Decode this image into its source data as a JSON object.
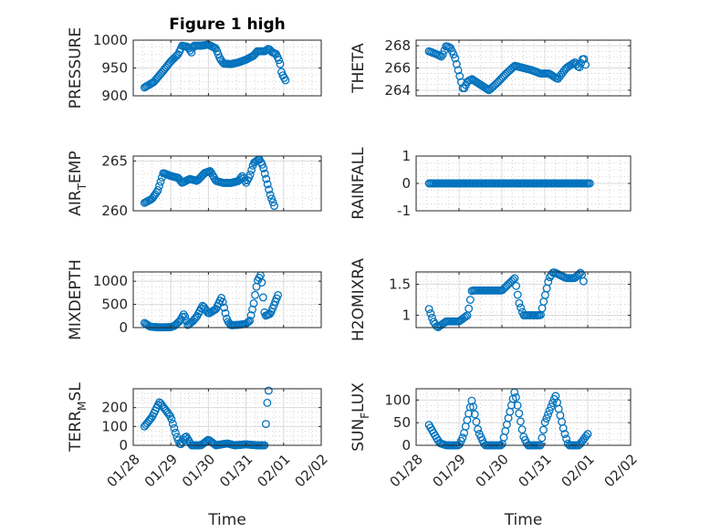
{
  "figure_title": "Figure 1 high",
  "chart_data": [
    {
      "type": "scatter",
      "name": "pressure",
      "ylabel": "PRESSURE",
      "ylabel_sub": null,
      "ylim": [
        900,
        1000
      ],
      "yticks": [
        900,
        950,
        1000
      ],
      "ytick_labels": [
        "900",
        "950",
        "1000"
      ],
      "xlim": [
        0,
        5
      ],
      "xtick_labels": [
        "01/28",
        "01/29",
        "01/30",
        "01/31",
        "02/01",
        "02/02"
      ],
      "show_xticklabels": false,
      "xlabel": "",
      "title": "Figure 1 high",
      "anchors": [
        [
          0.3,
          915
        ],
        [
          0.55,
          925
        ],
        [
          0.8,
          945
        ],
        [
          1.0,
          962
        ],
        [
          1.2,
          975
        ],
        [
          1.3,
          990
        ],
        [
          1.45,
          988
        ],
        [
          1.55,
          978
        ],
        [
          1.6,
          990
        ],
        [
          1.8,
          990
        ],
        [
          2.0,
          992
        ],
        [
          2.2,
          985
        ],
        [
          2.3,
          968
        ],
        [
          2.4,
          958
        ],
        [
          2.6,
          957
        ],
        [
          2.8,
          960
        ],
        [
          3.0,
          965
        ],
        [
          3.2,
          972
        ],
        [
          3.3,
          980
        ],
        [
          3.5,
          980
        ],
        [
          3.6,
          985
        ],
        [
          3.7,
          978
        ],
        [
          3.8,
          975
        ],
        [
          3.9,
          960
        ],
        [
          3.95,
          940
        ],
        [
          4.05,
          928
        ]
      ]
    },
    {
      "type": "scatter",
      "name": "theta",
      "ylabel": "THETA",
      "ylabel_sub": null,
      "ylim": [
        263.5,
        268.5
      ],
      "yticks": [
        264,
        266,
        268
      ],
      "ytick_labels": [
        "264",
        "266",
        "268"
      ],
      "xlim": [
        0,
        5
      ],
      "xtick_labels": [
        "01/28",
        "01/29",
        "01/30",
        "01/31",
        "02/01",
        "02/02"
      ],
      "show_xticklabels": false,
      "xlabel": "",
      "title": "",
      "anchors": [
        [
          0.3,
          267.5
        ],
        [
          0.5,
          267.2
        ],
        [
          0.6,
          267.0
        ],
        [
          0.7,
          268.0
        ],
        [
          0.8,
          267.8
        ],
        [
          0.9,
          267.0
        ],
        [
          1.0,
          265.5
        ],
        [
          1.1,
          264.0
        ],
        [
          1.2,
          264.8
        ],
        [
          1.3,
          265.0
        ],
        [
          1.5,
          264.5
        ],
        [
          1.7,
          264.0
        ],
        [
          1.9,
          264.7
        ],
        [
          2.1,
          265.5
        ],
        [
          2.3,
          266.2
        ],
        [
          2.5,
          266.0
        ],
        [
          2.7,
          265.8
        ],
        [
          2.9,
          265.5
        ],
        [
          3.1,
          265.5
        ],
        [
          3.3,
          265.0
        ],
        [
          3.5,
          266.0
        ],
        [
          3.7,
          266.5
        ],
        [
          3.8,
          266.0
        ],
        [
          3.9,
          267.0
        ],
        [
          3.95,
          266.3
        ]
      ]
    },
    {
      "type": "scatter",
      "name": "air_temp",
      "ylabel": "AIR",
      "ylabel_sub": "T",
      "ylabel_suffix": "EMP",
      "ylim": [
        260,
        265.5
      ],
      "yticks": [
        260,
        265
      ],
      "ytick_labels": [
        "260",
        "265"
      ],
      "xlim": [
        0,
        5
      ],
      "xtick_labels": [
        "01/28",
        "01/29",
        "01/30",
        "01/31",
        "02/01",
        "02/02"
      ],
      "show_xticklabels": false,
      "xlabel": "",
      "title": "",
      "anchors": [
        [
          0.3,
          260.8
        ],
        [
          0.5,
          261.2
        ],
        [
          0.65,
          262.0
        ],
        [
          0.8,
          263.8
        ],
        [
          1.0,
          263.5
        ],
        [
          1.2,
          263.3
        ],
        [
          1.3,
          262.8
        ],
        [
          1.5,
          263.2
        ],
        [
          1.7,
          263.0
        ],
        [
          1.9,
          263.8
        ],
        [
          2.05,
          264.0
        ],
        [
          2.2,
          263.0
        ],
        [
          2.4,
          262.8
        ],
        [
          2.6,
          262.8
        ],
        [
          2.8,
          263.0
        ],
        [
          2.9,
          263.5
        ],
        [
          3.0,
          262.8
        ],
        [
          3.1,
          263.5
        ],
        [
          3.2,
          264.8
        ],
        [
          3.35,
          265.2
        ],
        [
          3.45,
          264.5
        ],
        [
          3.55,
          263.0
        ],
        [
          3.65,
          261.5
        ],
        [
          3.75,
          260.5
        ]
      ]
    },
    {
      "type": "scatter",
      "name": "rainfall",
      "ylabel": "RAINFALL",
      "ylabel_sub": null,
      "ylim": [
        -1,
        1
      ],
      "yticks": [
        -1,
        0,
        1
      ],
      "ytick_labels": [
        "-1",
        "0",
        "1"
      ],
      "xlim": [
        0,
        5
      ],
      "xtick_labels": [
        "01/28",
        "01/29",
        "01/30",
        "01/31",
        "02/01",
        "02/02"
      ],
      "show_xticklabels": false,
      "xlabel": "",
      "title": "",
      "anchors": [
        [
          0.3,
          0
        ],
        [
          4.05,
          0
        ]
      ]
    },
    {
      "type": "scatter",
      "name": "mixdepth",
      "ylabel": "MIXDEPTH",
      "ylabel_sub": null,
      "ylim": [
        0,
        1200
      ],
      "yticks": [
        0,
        500,
        1000
      ],
      "ytick_labels": [
        "0",
        "500",
        "1000"
      ],
      "xlim": [
        0,
        5
      ],
      "xtick_labels": [
        "01/28",
        "01/29",
        "01/30",
        "01/31",
        "02/01",
        "02/02"
      ],
      "show_xticklabels": false,
      "xlabel": "",
      "title": "",
      "anchors": [
        [
          0.3,
          100
        ],
        [
          0.45,
          20
        ],
        [
          0.7,
          5
        ],
        [
          1.0,
          10
        ],
        [
          1.1,
          40
        ],
        [
          1.25,
          150
        ],
        [
          1.35,
          300
        ],
        [
          1.45,
          50
        ],
        [
          1.6,
          150
        ],
        [
          1.7,
          250
        ],
        [
          1.85,
          480
        ],
        [
          2.0,
          300
        ],
        [
          2.2,
          400
        ],
        [
          2.35,
          650
        ],
        [
          2.5,
          150
        ],
        [
          2.6,
          50
        ],
        [
          2.8,
          60
        ],
        [
          3.0,
          80
        ],
        [
          3.1,
          150
        ],
        [
          3.2,
          500
        ],
        [
          3.3,
          1000
        ],
        [
          3.4,
          1150
        ],
        [
          3.5,
          250
        ],
        [
          3.65,
          300
        ],
        [
          3.75,
          500
        ],
        [
          3.85,
          700
        ]
      ]
    },
    {
      "type": "scatter",
      "name": "h2omixra",
      "ylabel": "H2OMIXRA",
      "ylabel_sub": null,
      "ylim": [
        0.8,
        1.7
      ],
      "yticks": [
        1,
        1.5
      ],
      "ytick_labels": [
        "1",
        "1.5"
      ],
      "xlim": [
        0,
        5
      ],
      "xtick_labels": [
        "01/28",
        "01/29",
        "01/30",
        "01/31",
        "02/01",
        "02/02"
      ],
      "show_xticklabels": false,
      "xlabel": "",
      "title": "",
      "anchors": [
        [
          0.3,
          1.1
        ],
        [
          0.4,
          0.9
        ],
        [
          0.5,
          0.8
        ],
        [
          0.7,
          0.9
        ],
        [
          1.0,
          0.9
        ],
        [
          1.2,
          1.0
        ],
        [
          1.3,
          1.4
        ],
        [
          1.5,
          1.4
        ],
        [
          1.8,
          1.4
        ],
        [
          2.0,
          1.4
        ],
        [
          2.15,
          1.5
        ],
        [
          2.3,
          1.6
        ],
        [
          2.4,
          1.2
        ],
        [
          2.5,
          1.0
        ],
        [
          2.7,
          1.0
        ],
        [
          2.9,
          1.0
        ],
        [
          3.0,
          1.3
        ],
        [
          3.1,
          1.6
        ],
        [
          3.2,
          1.7
        ],
        [
          3.5,
          1.6
        ],
        [
          3.7,
          1.6
        ],
        [
          3.85,
          1.7
        ],
        [
          3.9,
          1.55
        ]
      ]
    },
    {
      "type": "scatter",
      "name": "terrmsl",
      "ylabel": "TERR",
      "ylabel_sub": "M",
      "ylabel_suffix": "SL",
      "ylim": [
        0,
        300
      ],
      "yticks": [
        0,
        100,
        200
      ],
      "ytick_labels": [
        "0",
        "100",
        "200"
      ],
      "xlim": [
        0,
        5
      ],
      "xtick_labels": [
        "01/28",
        "01/29",
        "01/30",
        "01/31",
        "02/01",
        "02/02"
      ],
      "show_xticklabels": true,
      "xlabel": "Time",
      "title": "",
      "anchors": [
        [
          0.3,
          100
        ],
        [
          0.5,
          150
        ],
        [
          0.7,
          230
        ],
        [
          0.85,
          190
        ],
        [
          1.0,
          150
        ],
        [
          1.15,
          50
        ],
        [
          1.25,
          0
        ],
        [
          1.4,
          50
        ],
        [
          1.55,
          0
        ],
        [
          1.8,
          0
        ],
        [
          2.0,
          30
        ],
        [
          2.2,
          0
        ],
        [
          2.5,
          10
        ],
        [
          2.7,
          0
        ],
        [
          3.0,
          5
        ],
        [
          3.3,
          0
        ],
        [
          3.5,
          0
        ],
        [
          3.55,
          200
        ],
        [
          3.6,
          290
        ]
      ]
    },
    {
      "type": "scatter",
      "name": "sunflux",
      "ylabel": "SUN",
      "ylabel_sub": "F",
      "ylabel_suffix": "LUX",
      "ylim": [
        0,
        125
      ],
      "yticks": [
        0,
        50,
        100
      ],
      "ytick_labels": [
        "0",
        "50",
        "100"
      ],
      "xlim": [
        0,
        5
      ],
      "xtick_labels": [
        "01/28",
        "01/29",
        "01/30",
        "01/31",
        "02/01",
        "02/02"
      ],
      "show_xticklabels": true,
      "xlabel": "Time",
      "title": "",
      "anchors": [
        [
          0.3,
          45
        ],
        [
          0.45,
          20
        ],
        [
          0.55,
          5
        ],
        [
          0.7,
          0
        ],
        [
          1.0,
          0
        ],
        [
          1.1,
          20
        ],
        [
          1.3,
          100
        ],
        [
          1.45,
          30
        ],
        [
          1.6,
          0
        ],
        [
          1.8,
          0
        ],
        [
          2.0,
          0
        ],
        [
          2.1,
          40
        ],
        [
          2.3,
          120
        ],
        [
          2.5,
          20
        ],
        [
          2.6,
          0
        ],
        [
          2.9,
          0
        ],
        [
          3.0,
          50
        ],
        [
          3.25,
          110
        ],
        [
          3.45,
          30
        ],
        [
          3.55,
          0
        ],
        [
          3.8,
          0
        ],
        [
          4.0,
          25
        ]
      ]
    }
  ]
}
